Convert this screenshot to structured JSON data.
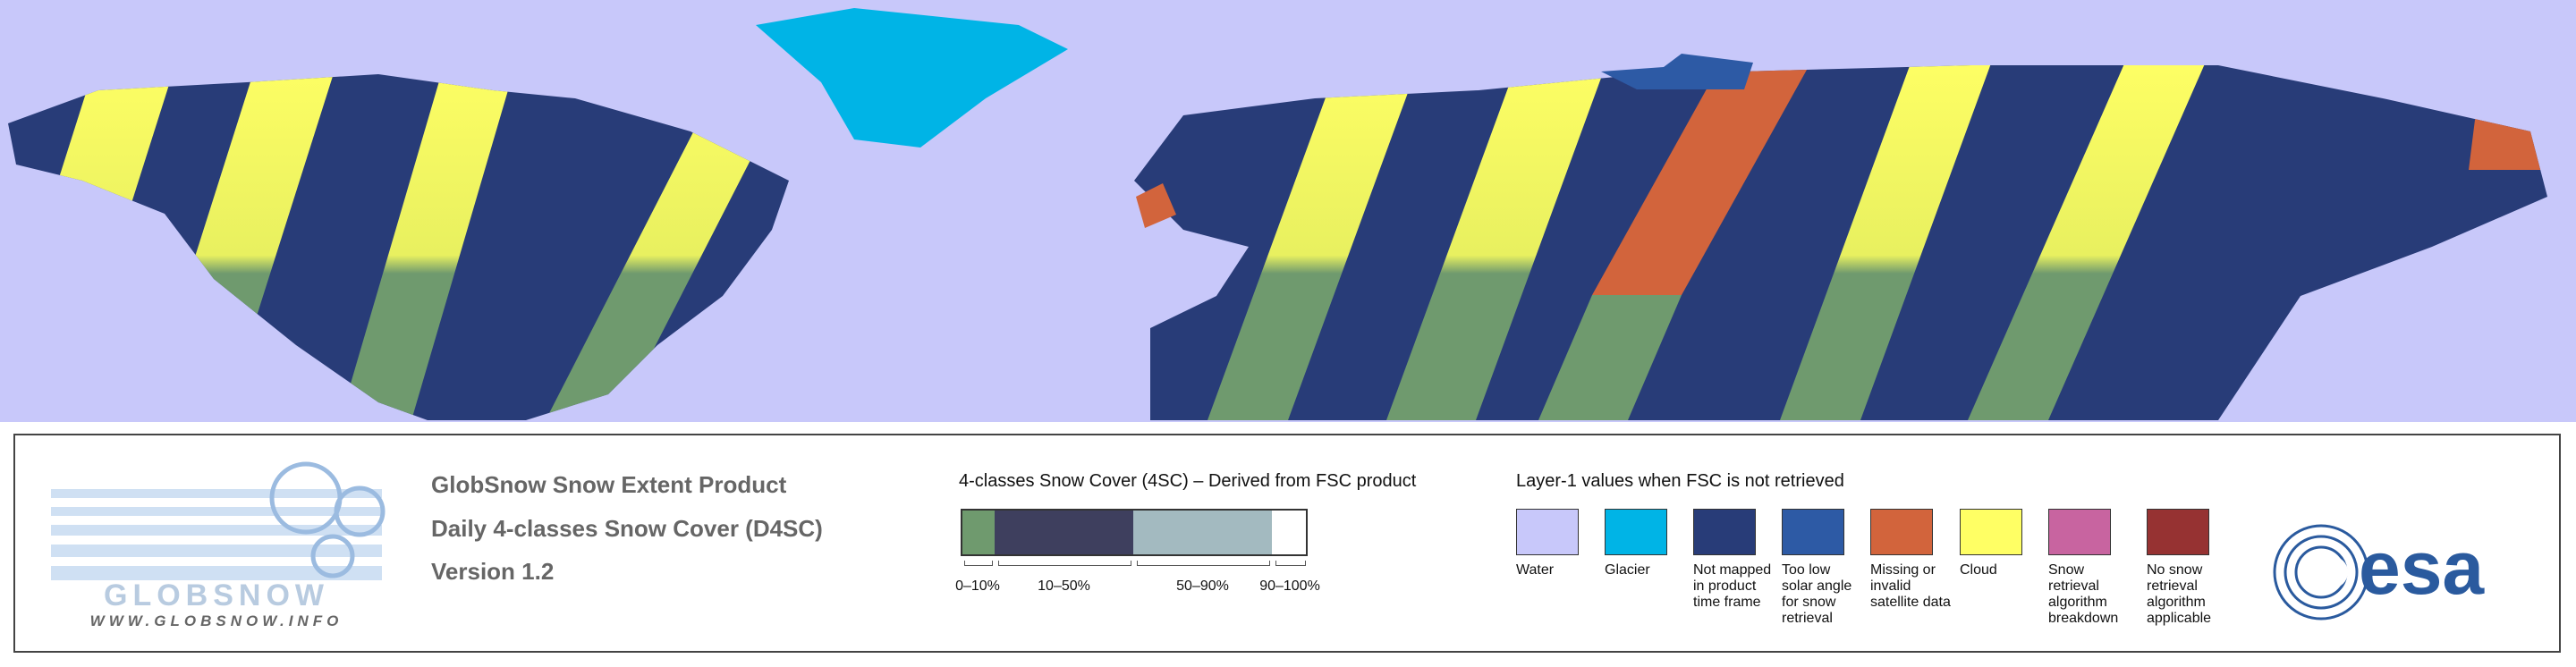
{
  "logo": {
    "name": "GLOBSNOW",
    "url": "WWW.GLOBSNOW.INFO"
  },
  "header": {
    "product": "GlobSnow Snow Extent Product",
    "subtitle": "Daily 4-classes Snow Cover (D4SC)",
    "version": "Version 1.2"
  },
  "snow_cover_legend": {
    "title": "4-classes Snow Cover (4SC) – Derived from FSC product",
    "classes": [
      {
        "label": "0–10%",
        "color": "#6f9a6e"
      },
      {
        "label": "10–50%",
        "color": "#3e3f5e"
      },
      {
        "label": "50–90%",
        "color": "#a3bac0"
      },
      {
        "label": "90–100%",
        "color": "#ffffff"
      }
    ]
  },
  "layer1_legend": {
    "title": "Layer-1 values when FSC is not retrieved",
    "items": [
      {
        "label": "Water",
        "color": "#c8c8fa"
      },
      {
        "label": "Glacier",
        "color": "#00b4e6"
      },
      {
        "label": "Not mapped in product time frame",
        "color": "#283c78"
      },
      {
        "label": "Too low solar angle for snow retrieval",
        "color": "#2d5aa5"
      },
      {
        "label": "Missing or invalid satellite data",
        "color": "#d2643c"
      },
      {
        "label": "Cloud",
        "color": "#ffff64"
      },
      {
        "label": "Snow retrieval algorithm breakdown",
        "color": "#c864a0"
      },
      {
        "label": "No snow retrieval algorithm applicable",
        "color": "#963232"
      }
    ]
  },
  "esa_logo": {
    "text": "esa"
  }
}
